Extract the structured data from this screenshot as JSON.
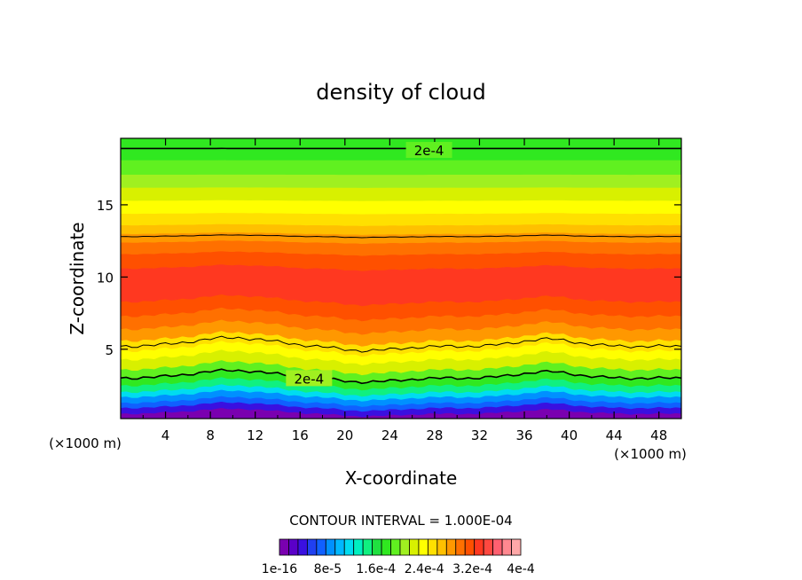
{
  "chart_data": {
    "type": "heatmap",
    "title": "density of cloud",
    "xlabel": "X-coordinate",
    "ylabel": "Z-coordinate",
    "x_unit_left": "(×1000 m)",
    "x_unit_right": "(×1000 m)",
    "xlim": [
      0,
      50
    ],
    "ylim": [
      0.2,
      19.6
    ],
    "x_ticks": [
      4,
      8,
      12,
      16,
      20,
      24,
      28,
      32,
      36,
      40,
      44,
      48
    ],
    "y_ticks": [
      5,
      10,
      15
    ],
    "contour_interval_text": "CONTOUR INTERVAL = 1.000E-04",
    "contour_labels": [
      {
        "text": "2e-4",
        "x": 27.5,
        "z": 18.8
      },
      {
        "text": "2e-4",
        "x": 16.8,
        "z": 3.0
      }
    ],
    "colorbar": {
      "colors": [
        "#7a00b0",
        "#5a00c8",
        "#3a10e0",
        "#2040f0",
        "#1060ff",
        "#0090ff",
        "#00b8ff",
        "#00dcf0",
        "#00f0c0",
        "#10f080",
        "#20e040",
        "#30e820",
        "#60f020",
        "#a0f020",
        "#d8f000",
        "#ffff00",
        "#ffe000",
        "#ffc000",
        "#ff9800",
        "#ff7000",
        "#ff5000",
        "#ff3820",
        "#ff4840",
        "#ff6070",
        "#ff8890",
        "#ffa8a8"
      ],
      "tick_labels": [
        "1e-16",
        "8e-5",
        "1.6e-4",
        "2.4e-4",
        "3.2e-4",
        "4e-4"
      ]
    },
    "grid": false,
    "legend": "bottom"
  }
}
